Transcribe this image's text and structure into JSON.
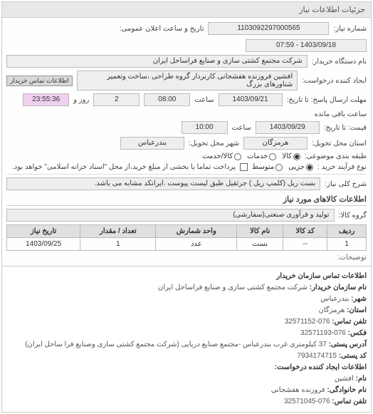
{
  "header": {
    "title": "جزئیات اطلاعات نیاز"
  },
  "need": {
    "number_label": "شماره نیاز:",
    "number": "1103092297000565",
    "announce_label": "تاریخ و ساعت اعلان عمومی:",
    "announce": "1403/09/18 - 07:59",
    "buyer_org_label": "نام دستگاه خریدار:",
    "buyer_org": "شرکت مجتمع کشتی سازی و صنایع فراساحل ایران",
    "requester_label": "ایجاد کننده درخواست:",
    "requester": "افشین فروزنده هفشجانی کاربردار گروه طراحی ،ساخت وتعمیر شناورهای بزرگ",
    "buyer_contact_btn": "اطلاعات تماس خریدار",
    "deadline_label": "مهلت ارسال پاسخ: تا تاریخ:",
    "deadline_date": "1403/09/21",
    "deadline_time_label": "ساعت",
    "deadline_time": "08:00",
    "remain_day_val": "2",
    "remain_day_label": "روز و",
    "remain_time_val": "23:55:36",
    "remain_time_label": "ساعت باقی مانده",
    "price_date_label": "قیمت: تا تاریخ:",
    "price_date": "1403/09/29",
    "price_time_label": "ساعت",
    "price_time": "10:00",
    "delivery_state_label": "استان محل تحویل:",
    "delivery_state": "هرمزگان",
    "delivery_city_label": "شهر محل تحویل:",
    "delivery_city": "بندرعباس",
    "group_label": "طبقه بندی موضوعی:",
    "group_options": {
      "kala": "کالا",
      "kalaKhedmat": "کالا/خدمت",
      "khadamat": "خدمات"
    },
    "pay_label": "نوع فرآیند خرید :",
    "pay_options": {
      "partial": "جزیی",
      "medium": "متوسط"
    },
    "pay_note": "پرداخت تماما یا بخشی از مبلغ خرید،از محل \"اسناد خزانه اسلامی\" خواهد بود.",
    "desc_label": "شرح کلی نیاز:",
    "desc": "بست ریل (کلمپ ریل ) جرثقیل طبق لیست پیوست .ایرانکد مشابه می باشد.",
    "goods_section": "اطلاعات کالاهای مورد نیاز",
    "goods_group_label": "گروه کالا:",
    "goods_group": "تولید و فرآوری صنعتی(سفارشی)",
    "table": {
      "cols": [
        "ردیف",
        "کد کالا",
        "نام کالا",
        "واحد شمارش",
        "تعداد / مقدار",
        "تاریخ نیاز"
      ],
      "rows": [
        [
          "1",
          "--",
          "بست",
          "عدد",
          "1",
          "1403/09/25"
        ]
      ]
    },
    "extra_label": "توضیحات:"
  },
  "contact": {
    "section1": "اطلاعات تماس سازمان خریدار",
    "org_label": "نام سازمان خریدار:",
    "org": "شرکت مجتمع کشتی سازی و صنایع فراساحل ایران",
    "city_label": "شهر:",
    "city": "بندرعباس",
    "state_label": "استان:",
    "state": "هرمزگان",
    "phone_label": "تلفن تماس:",
    "phone": "076-32571152",
    "fax_label": "فکس:",
    "fax": "076-32571193",
    "post_addr_label": "آدرس پستی:",
    "post_addr": "37 کیلومتری غرب بندرعباس -مجتمع صنایع دریایی (شرکت مجتمع کشتی سازی وصنایع فرا ساحل ایران)",
    "post_code_label": "کد پستی:",
    "post_code": "7934174715",
    "section2": "اطلاعات ایجاد کننده درخواست:",
    "name_label": "نام:",
    "name": "افشین",
    "lname_label": "نام خانوادگی:",
    "lname": "فروزنده هفشجانی",
    "phone2_label": "تلفن تماس:",
    "phone2": "076-32571045"
  }
}
